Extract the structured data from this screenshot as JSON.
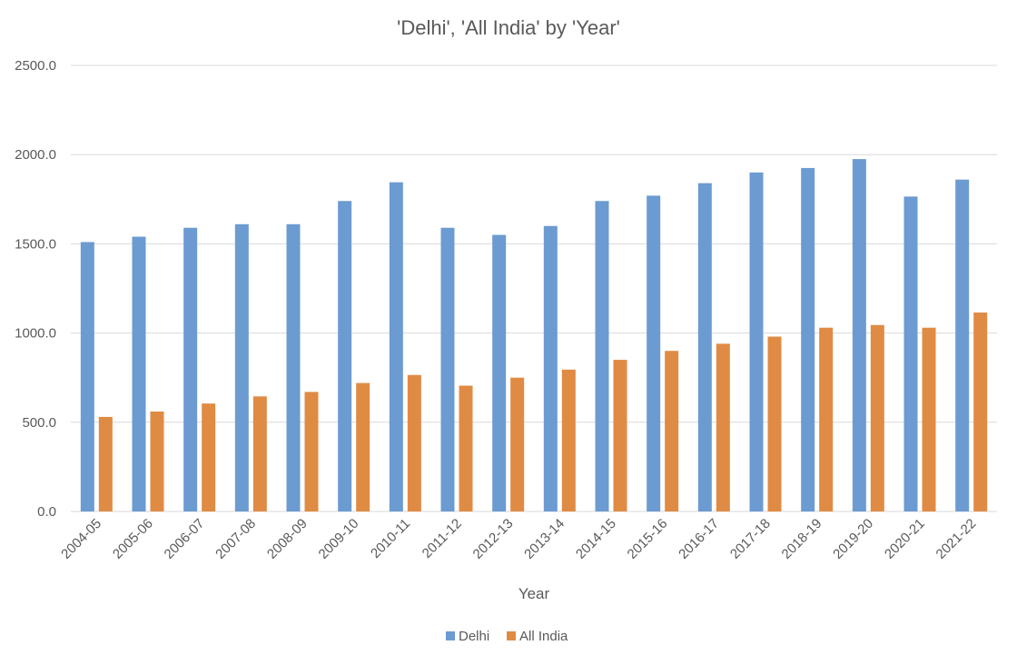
{
  "chart_data": {
    "type": "bar",
    "title": "'Delhi', 'All India' by 'Year'",
    "xlabel": "Year",
    "ylabel": "",
    "ylim": [
      0,
      2500
    ],
    "yticks": [
      0,
      500,
      1000,
      1500,
      2000,
      2500
    ],
    "ytick_labels": [
      "0.0",
      "500.0",
      "1000.0",
      "1500.0",
      "2000.0",
      "2500.0"
    ],
    "grid": true,
    "legend_position": "bottom-center",
    "categories": [
      "2004-05",
      "2005-06",
      "2006-07",
      "2007-08",
      "2008-09",
      "2009-10",
      "2010-11",
      "2011-12",
      "2012-13",
      "2013-14",
      "2014-15",
      "2015-16",
      "2016-17",
      "2017-18",
      "2018-19",
      "2019-20",
      "2020-21",
      "2021-22"
    ],
    "series": [
      {
        "name": "Delhi",
        "color": "#6b9bd1",
        "values": [
          1510,
          1540,
          1590,
          1610,
          1610,
          1740,
          1845,
          1590,
          1550,
          1600,
          1740,
          1770,
          1840,
          1900,
          1925,
          1975,
          1765,
          1860
        ]
      },
      {
        "name": "All India",
        "color": "#e08b43",
        "values": [
          530,
          560,
          605,
          645,
          670,
          720,
          765,
          705,
          750,
          795,
          850,
          900,
          940,
          980,
          1030,
          1045,
          1030,
          1115
        ]
      }
    ]
  }
}
